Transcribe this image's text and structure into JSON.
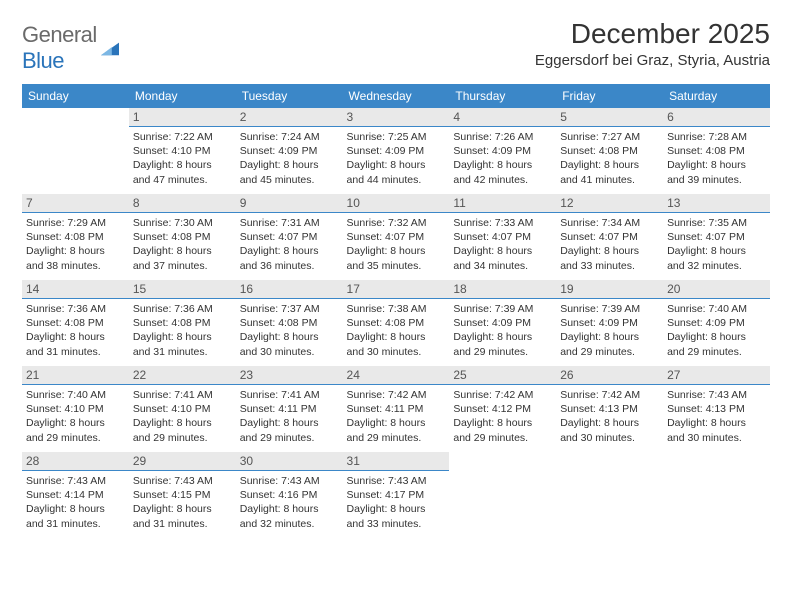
{
  "logo": {
    "word1": "General",
    "word2": "Blue"
  },
  "title": "December 2025",
  "subtitle": "Eggersdorf bei Graz, Styria, Austria",
  "colors": {
    "header_bg": "#3b87c8",
    "header_text": "#ffffff",
    "daynum_bg": "#e9e9e9",
    "daynum_border": "#3b87c8",
    "logo_gray": "#6a6a6a",
    "logo_blue": "#2a74ba",
    "page_bg": "#ffffff",
    "text": "#333333"
  },
  "fontsizes": {
    "title": 28,
    "subtitle": 15,
    "dow": 12,
    "daynum": 12,
    "body": 10.5
  },
  "weekdays": [
    "Sunday",
    "Monday",
    "Tuesday",
    "Wednesday",
    "Thursday",
    "Friday",
    "Saturday"
  ],
  "weeks": [
    [
      {
        "empty": true
      },
      {
        "d": "1",
        "sr": "Sunrise: 7:22 AM",
        "ss": "Sunset: 4:10 PM",
        "dl1": "Daylight: 8 hours",
        "dl2": "and 47 minutes."
      },
      {
        "d": "2",
        "sr": "Sunrise: 7:24 AM",
        "ss": "Sunset: 4:09 PM",
        "dl1": "Daylight: 8 hours",
        "dl2": "and 45 minutes."
      },
      {
        "d": "3",
        "sr": "Sunrise: 7:25 AM",
        "ss": "Sunset: 4:09 PM",
        "dl1": "Daylight: 8 hours",
        "dl2": "and 44 minutes."
      },
      {
        "d": "4",
        "sr": "Sunrise: 7:26 AM",
        "ss": "Sunset: 4:09 PM",
        "dl1": "Daylight: 8 hours",
        "dl2": "and 42 minutes."
      },
      {
        "d": "5",
        "sr": "Sunrise: 7:27 AM",
        "ss": "Sunset: 4:08 PM",
        "dl1": "Daylight: 8 hours",
        "dl2": "and 41 minutes."
      },
      {
        "d": "6",
        "sr": "Sunrise: 7:28 AM",
        "ss": "Sunset: 4:08 PM",
        "dl1": "Daylight: 8 hours",
        "dl2": "and 39 minutes."
      }
    ],
    [
      {
        "d": "7",
        "sr": "Sunrise: 7:29 AM",
        "ss": "Sunset: 4:08 PM",
        "dl1": "Daylight: 8 hours",
        "dl2": "and 38 minutes."
      },
      {
        "d": "8",
        "sr": "Sunrise: 7:30 AM",
        "ss": "Sunset: 4:08 PM",
        "dl1": "Daylight: 8 hours",
        "dl2": "and 37 minutes."
      },
      {
        "d": "9",
        "sr": "Sunrise: 7:31 AM",
        "ss": "Sunset: 4:07 PM",
        "dl1": "Daylight: 8 hours",
        "dl2": "and 36 minutes."
      },
      {
        "d": "10",
        "sr": "Sunrise: 7:32 AM",
        "ss": "Sunset: 4:07 PM",
        "dl1": "Daylight: 8 hours",
        "dl2": "and 35 minutes."
      },
      {
        "d": "11",
        "sr": "Sunrise: 7:33 AM",
        "ss": "Sunset: 4:07 PM",
        "dl1": "Daylight: 8 hours",
        "dl2": "and 34 minutes."
      },
      {
        "d": "12",
        "sr": "Sunrise: 7:34 AM",
        "ss": "Sunset: 4:07 PM",
        "dl1": "Daylight: 8 hours",
        "dl2": "and 33 minutes."
      },
      {
        "d": "13",
        "sr": "Sunrise: 7:35 AM",
        "ss": "Sunset: 4:07 PM",
        "dl1": "Daylight: 8 hours",
        "dl2": "and 32 minutes."
      }
    ],
    [
      {
        "d": "14",
        "sr": "Sunrise: 7:36 AM",
        "ss": "Sunset: 4:08 PM",
        "dl1": "Daylight: 8 hours",
        "dl2": "and 31 minutes."
      },
      {
        "d": "15",
        "sr": "Sunrise: 7:36 AM",
        "ss": "Sunset: 4:08 PM",
        "dl1": "Daylight: 8 hours",
        "dl2": "and 31 minutes."
      },
      {
        "d": "16",
        "sr": "Sunrise: 7:37 AM",
        "ss": "Sunset: 4:08 PM",
        "dl1": "Daylight: 8 hours",
        "dl2": "and 30 minutes."
      },
      {
        "d": "17",
        "sr": "Sunrise: 7:38 AM",
        "ss": "Sunset: 4:08 PM",
        "dl1": "Daylight: 8 hours",
        "dl2": "and 30 minutes."
      },
      {
        "d": "18",
        "sr": "Sunrise: 7:39 AM",
        "ss": "Sunset: 4:09 PM",
        "dl1": "Daylight: 8 hours",
        "dl2": "and 29 minutes."
      },
      {
        "d": "19",
        "sr": "Sunrise: 7:39 AM",
        "ss": "Sunset: 4:09 PM",
        "dl1": "Daylight: 8 hours",
        "dl2": "and 29 minutes."
      },
      {
        "d": "20",
        "sr": "Sunrise: 7:40 AM",
        "ss": "Sunset: 4:09 PM",
        "dl1": "Daylight: 8 hours",
        "dl2": "and 29 minutes."
      }
    ],
    [
      {
        "d": "21",
        "sr": "Sunrise: 7:40 AM",
        "ss": "Sunset: 4:10 PM",
        "dl1": "Daylight: 8 hours",
        "dl2": "and 29 minutes."
      },
      {
        "d": "22",
        "sr": "Sunrise: 7:41 AM",
        "ss": "Sunset: 4:10 PM",
        "dl1": "Daylight: 8 hours",
        "dl2": "and 29 minutes."
      },
      {
        "d": "23",
        "sr": "Sunrise: 7:41 AM",
        "ss": "Sunset: 4:11 PM",
        "dl1": "Daylight: 8 hours",
        "dl2": "and 29 minutes."
      },
      {
        "d": "24",
        "sr": "Sunrise: 7:42 AM",
        "ss": "Sunset: 4:11 PM",
        "dl1": "Daylight: 8 hours",
        "dl2": "and 29 minutes."
      },
      {
        "d": "25",
        "sr": "Sunrise: 7:42 AM",
        "ss": "Sunset: 4:12 PM",
        "dl1": "Daylight: 8 hours",
        "dl2": "and 29 minutes."
      },
      {
        "d": "26",
        "sr": "Sunrise: 7:42 AM",
        "ss": "Sunset: 4:13 PM",
        "dl1": "Daylight: 8 hours",
        "dl2": "and 30 minutes."
      },
      {
        "d": "27",
        "sr": "Sunrise: 7:43 AM",
        "ss": "Sunset: 4:13 PM",
        "dl1": "Daylight: 8 hours",
        "dl2": "and 30 minutes."
      }
    ],
    [
      {
        "d": "28",
        "sr": "Sunrise: 7:43 AM",
        "ss": "Sunset: 4:14 PM",
        "dl1": "Daylight: 8 hours",
        "dl2": "and 31 minutes."
      },
      {
        "d": "29",
        "sr": "Sunrise: 7:43 AM",
        "ss": "Sunset: 4:15 PM",
        "dl1": "Daylight: 8 hours",
        "dl2": "and 31 minutes."
      },
      {
        "d": "30",
        "sr": "Sunrise: 7:43 AM",
        "ss": "Sunset: 4:16 PM",
        "dl1": "Daylight: 8 hours",
        "dl2": "and 32 minutes."
      },
      {
        "d": "31",
        "sr": "Sunrise: 7:43 AM",
        "ss": "Sunset: 4:17 PM",
        "dl1": "Daylight: 8 hours",
        "dl2": "and 33 minutes."
      },
      {
        "empty": true
      },
      {
        "empty": true
      },
      {
        "empty": true
      }
    ]
  ]
}
